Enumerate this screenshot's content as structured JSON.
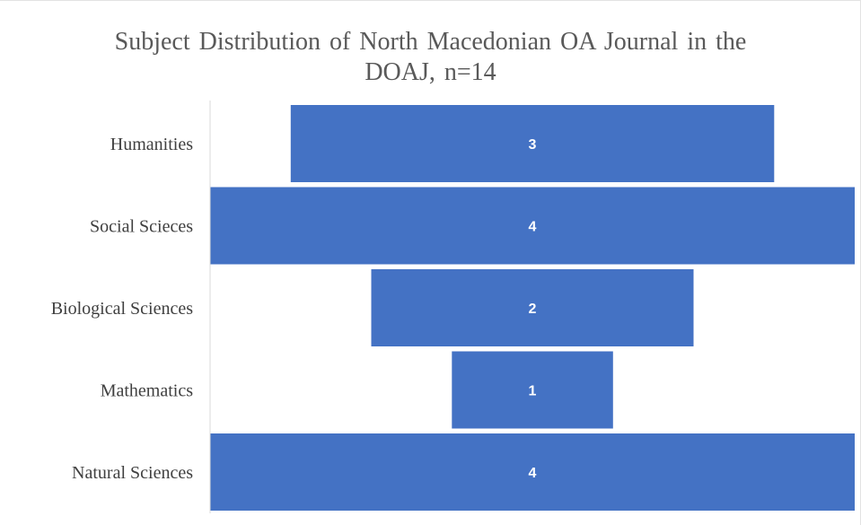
{
  "chart_data": {
    "type": "bar",
    "orientation": "horizontal-funnel",
    "title_lines": [
      "Subject Distribution  of North Macedonian  OA Journal  in the",
      "DOAJ, n=14"
    ],
    "categories": [
      "Humanities",
      "Social Scieces",
      "Biological Sciences",
      "Mathematics",
      "Natural Sciences"
    ],
    "values": [
      3,
      4,
      2,
      1,
      4
    ],
    "max_value": 4,
    "bar_color": "#4472c4",
    "axis_color": "#d9d9d9",
    "data_labels": true,
    "grid": false,
    "legend": "none"
  }
}
